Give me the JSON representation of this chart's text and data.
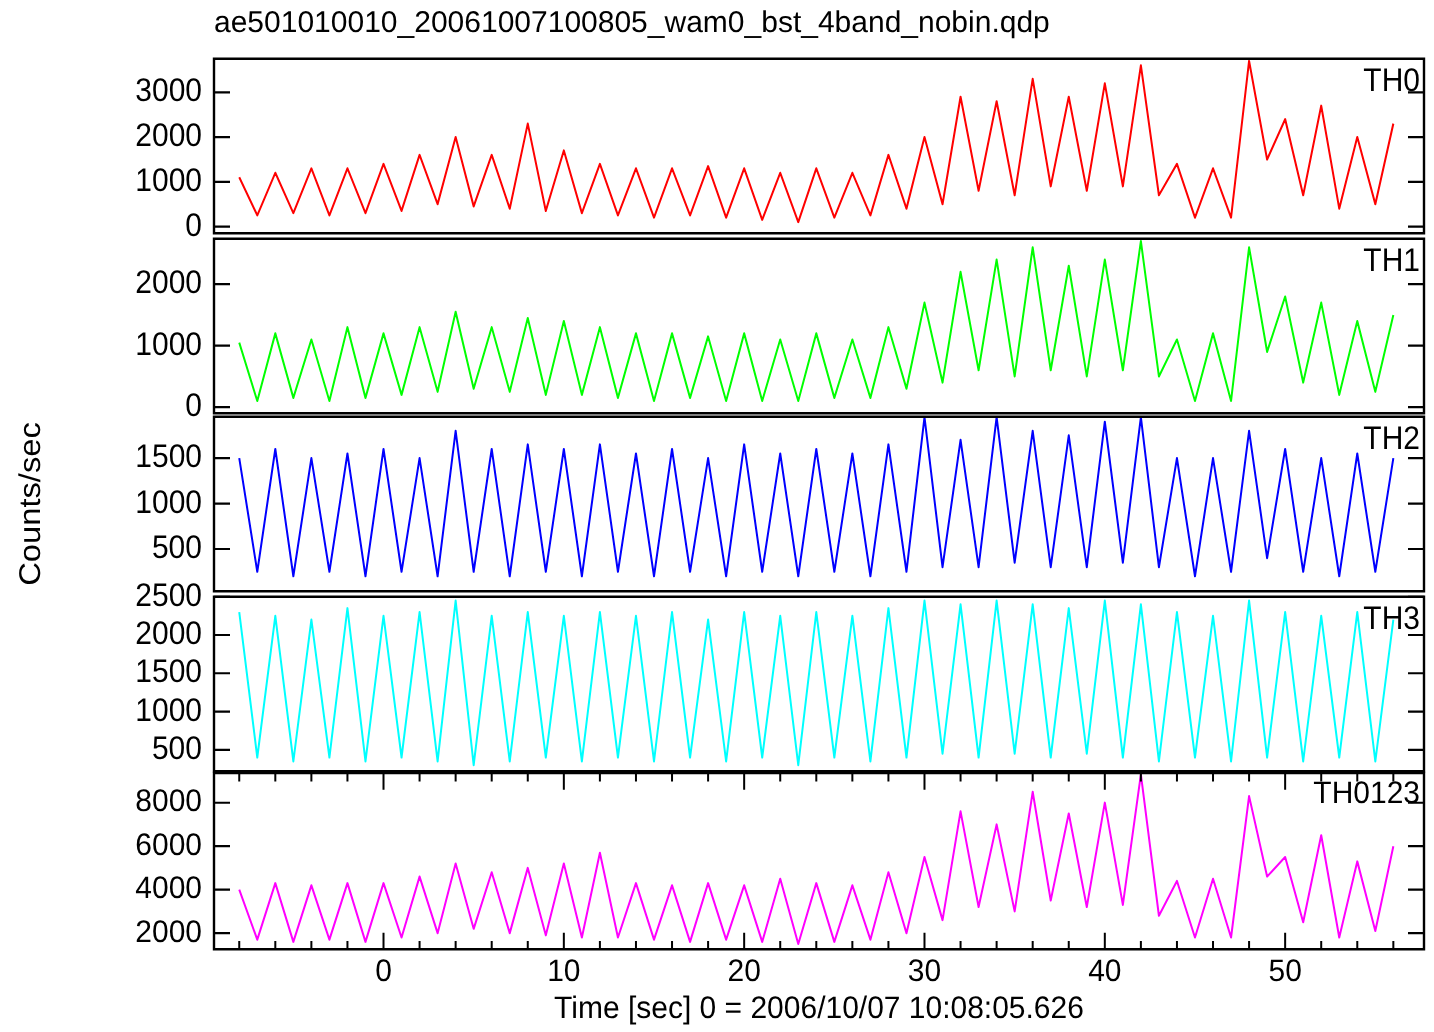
{
  "chart_data": [
    {
      "type": "line",
      "title": "ae501010010_20061007100805_wam0_bst_4band_nobin.qdp",
      "tick_labels": "y",
      "xlim": [
        -9.4,
        57.7
      ],
      "ylim": [
        -150,
        3750
      ],
      "yticks": [
        0,
        1000,
        2000,
        3000
      ],
      "x": [
        -8,
        -7,
        -6,
        -5,
        -4,
        -3,
        -2,
        -1,
        0,
        1,
        2,
        3,
        4,
        5,
        6,
        7,
        8,
        9,
        10,
        11,
        12,
        13,
        14,
        15,
        16,
        17,
        18,
        19,
        20,
        21,
        22,
        23,
        24,
        25,
        26,
        27,
        28,
        29,
        30,
        31,
        32,
        33,
        34,
        35,
        36,
        37,
        38,
        39,
        40,
        41,
        42,
        43,
        44,
        45,
        46,
        47,
        48,
        49,
        50,
        51,
        52,
        53,
        54,
        55,
        56
      ],
      "series": [
        {
          "name": "TH0",
          "color": "#ff0000",
          "values": [
            1100,
            250,
            1200,
            300,
            1300,
            250,
            1300,
            300,
            1400,
            350,
            1600,
            500,
            2000,
            450,
            1600,
            400,
            2300,
            350,
            1700,
            300,
            1400,
            250,
            1300,
            200,
            1300,
            250,
            1350,
            200,
            1300,
            150,
            1200,
            100,
            1300,
            200,
            1200,
            250,
            1600,
            400,
            2000,
            500,
            2900,
            800,
            2800,
            700,
            3300,
            900,
            2900,
            800,
            3200,
            900,
            3600,
            700,
            1400,
            200,
            1300,
            200,
            3700,
            1500,
            2400,
            700,
            2700,
            400,
            2000,
            500,
            2300
          ]
        }
      ]
    },
    {
      "type": "line",
      "tick_labels": "y",
      "xlim": [
        -9.4,
        57.7
      ],
      "ylim": [
        -100,
        2740
      ],
      "yticks": [
        0,
        1000,
        2000
      ],
      "x": [
        -8,
        -7,
        -6,
        -5,
        -4,
        -3,
        -2,
        -1,
        0,
        1,
        2,
        3,
        4,
        5,
        6,
        7,
        8,
        9,
        10,
        11,
        12,
        13,
        14,
        15,
        16,
        17,
        18,
        19,
        20,
        21,
        22,
        23,
        24,
        25,
        26,
        27,
        28,
        29,
        30,
        31,
        32,
        33,
        34,
        35,
        36,
        37,
        38,
        39,
        40,
        41,
        42,
        43,
        44,
        45,
        46,
        47,
        48,
        49,
        50,
        51,
        52,
        53,
        54,
        55,
        56
      ],
      "series": [
        {
          "name": "TH1",
          "color": "#00ff00",
          "values": [
            1050,
            100,
            1200,
            150,
            1100,
            100,
            1300,
            150,
            1200,
            200,
            1300,
            250,
            1550,
            300,
            1300,
            250,
            1450,
            200,
            1400,
            200,
            1300,
            150,
            1200,
            100,
            1200,
            150,
            1150,
            100,
            1200,
            100,
            1100,
            100,
            1200,
            150,
            1100,
            150,
            1300,
            300,
            1700,
            400,
            2200,
            600,
            2400,
            500,
            2600,
            600,
            2300,
            500,
            2400,
            600,
            2700,
            500,
            1100,
            100,
            1200,
            100,
            2600,
            900,
            1800,
            400,
            1700,
            200,
            1400,
            250,
            1500
          ]
        }
      ]
    },
    {
      "type": "line",
      "ylabel": "Counts/sec",
      "tick_labels": "y",
      "xlim": [
        -9.4,
        57.7
      ],
      "ylim": [
        35,
        1955
      ],
      "yticks": [
        500,
        1000,
        1500
      ],
      "x": [
        -8,
        -7,
        -6,
        -5,
        -4,
        -3,
        -2,
        -1,
        0,
        1,
        2,
        3,
        4,
        5,
        6,
        7,
        8,
        9,
        10,
        11,
        12,
        13,
        14,
        15,
        16,
        17,
        18,
        19,
        20,
        21,
        22,
        23,
        24,
        25,
        26,
        27,
        28,
        29,
        30,
        31,
        32,
        33,
        34,
        35,
        36,
        37,
        38,
        39,
        40,
        41,
        42,
        43,
        44,
        45,
        46,
        47,
        48,
        49,
        50,
        51,
        52,
        53,
        54,
        55,
        56
      ],
      "series": [
        {
          "name": "TH2",
          "color": "#0000ff",
          "values": [
            1500,
            250,
            1600,
            200,
            1500,
            250,
            1550,
            200,
            1600,
            250,
            1500,
            200,
            1800,
            250,
            1600,
            200,
            1650,
            250,
            1600,
            200,
            1650,
            250,
            1550,
            200,
            1600,
            250,
            1500,
            200,
            1650,
            250,
            1550,
            200,
            1600,
            250,
            1550,
            200,
            1650,
            250,
            1950,
            300,
            1700,
            300,
            1950,
            350,
            1800,
            300,
            1750,
            300,
            1900,
            350,
            1950,
            300,
            1500,
            200,
            1500,
            250,
            1800,
            400,
            1600,
            250,
            1500,
            200,
            1550,
            250,
            1500
          ]
        }
      ]
    },
    {
      "type": "line",
      "tick_labels": "y",
      "xlim": [
        -9.4,
        57.7
      ],
      "ylim": [
        220,
        2500
      ],
      "yticks": [
        500,
        1000,
        1500,
        2000,
        2500
      ],
      "x": [
        -8,
        -7,
        -6,
        -5,
        -4,
        -3,
        -2,
        -1,
        0,
        1,
        2,
        3,
        4,
        5,
        6,
        7,
        8,
        9,
        10,
        11,
        12,
        13,
        14,
        15,
        16,
        17,
        18,
        19,
        20,
        21,
        22,
        23,
        24,
        25,
        26,
        27,
        28,
        29,
        30,
        31,
        32,
        33,
        34,
        35,
        36,
        37,
        38,
        39,
        40,
        41,
        42,
        43,
        44,
        45,
        46,
        47,
        48,
        49,
        50,
        51,
        52,
        53,
        54,
        55,
        56
      ],
      "series": [
        {
          "name": "TH3",
          "color": "#00ffff",
          "values": [
            2300,
            400,
            2250,
            350,
            2200,
            400,
            2350,
            350,
            2250,
            400,
            2300,
            350,
            2450,
            300,
            2250,
            350,
            2300,
            400,
            2250,
            350,
            2300,
            400,
            2250,
            350,
            2300,
            400,
            2200,
            350,
            2300,
            400,
            2250,
            300,
            2300,
            400,
            2250,
            350,
            2350,
            400,
            2450,
            450,
            2400,
            400,
            2450,
            450,
            2400,
            400,
            2350,
            450,
            2450,
            400,
            2400,
            350,
            2300,
            400,
            2250,
            350,
            2450,
            400,
            2300,
            350,
            2250,
            400,
            2300,
            350,
            2200
          ]
        }
      ]
    },
    {
      "type": "line",
      "xlabel": "Time [sec] 0 = 2006/10/07 10:08:05.626",
      "xlim": [
        -9.4,
        57.7
      ],
      "ylim": [
        1260,
        9360
      ],
      "yticks": [
        2000,
        4000,
        6000,
        8000
      ],
      "xticks": [
        {
          "value": -8,
          "label": null
        },
        {
          "value": -6,
          "label": null
        },
        {
          "value": -4,
          "label": null
        },
        {
          "value": -2,
          "label": null
        },
        0,
        {
          "value": 2,
          "label": null
        },
        {
          "value": 4,
          "label": null
        },
        {
          "value": 6,
          "label": null
        },
        {
          "value": 8,
          "label": null
        },
        10,
        {
          "value": 12,
          "label": null
        },
        {
          "value": 14,
          "label": null
        },
        {
          "value": 16,
          "label": null
        },
        {
          "value": 18,
          "label": null
        },
        20,
        {
          "value": 22,
          "label": null
        },
        {
          "value": 24,
          "label": null
        },
        {
          "value": 26,
          "label": null
        },
        {
          "value": 28,
          "label": null
        },
        30,
        {
          "value": 32,
          "label": null
        },
        {
          "value": 34,
          "label": null
        },
        {
          "value": 36,
          "label": null
        },
        {
          "value": 38,
          "label": null
        },
        40,
        {
          "value": 42,
          "label": null
        },
        {
          "value": 44,
          "label": null
        },
        {
          "value": 46,
          "label": null
        },
        {
          "value": 48,
          "label": null
        },
        50,
        {
          "value": 52,
          "label": null
        },
        {
          "value": 54,
          "label": null
        },
        {
          "value": 56,
          "label": null
        }
      ],
      "x": [
        -8,
        -7,
        -6,
        -5,
        -4,
        -3,
        -2,
        -1,
        0,
        1,
        2,
        3,
        4,
        5,
        6,
        7,
        8,
        9,
        10,
        11,
        12,
        13,
        14,
        15,
        16,
        17,
        18,
        19,
        20,
        21,
        22,
        23,
        24,
        25,
        26,
        27,
        28,
        29,
        30,
        31,
        32,
        33,
        34,
        35,
        36,
        37,
        38,
        39,
        40,
        41,
        42,
        43,
        44,
        45,
        46,
        47,
        48,
        49,
        50,
        51,
        52,
        53,
        54,
        55,
        56
      ],
      "series": [
        {
          "name": "TH0123",
          "color": "#ff00ff",
          "values": [
            4000,
            1700,
            4300,
            1600,
            4200,
            1700,
            4300,
            1600,
            4300,
            1800,
            4600,
            2000,
            5200,
            2200,
            4800,
            2000,
            5000,
            1900,
            5200,
            1800,
            5700,
            1800,
            4300,
            1700,
            4200,
            1600,
            4300,
            1700,
            4200,
            1600,
            4500,
            1500,
            4300,
            1600,
            4200,
            1700,
            4800,
            2000,
            5500,
            2600,
            7600,
            3200,
            7000,
            3000,
            8500,
            3500,
            7500,
            3200,
            8000,
            3300,
            9300,
            2800,
            4400,
            1800,
            4500,
            1800,
            8300,
            4600,
            5500,
            2500,
            6500,
            1800,
            5300,
            2100,
            6000
          ]
        }
      ]
    }
  ]
}
